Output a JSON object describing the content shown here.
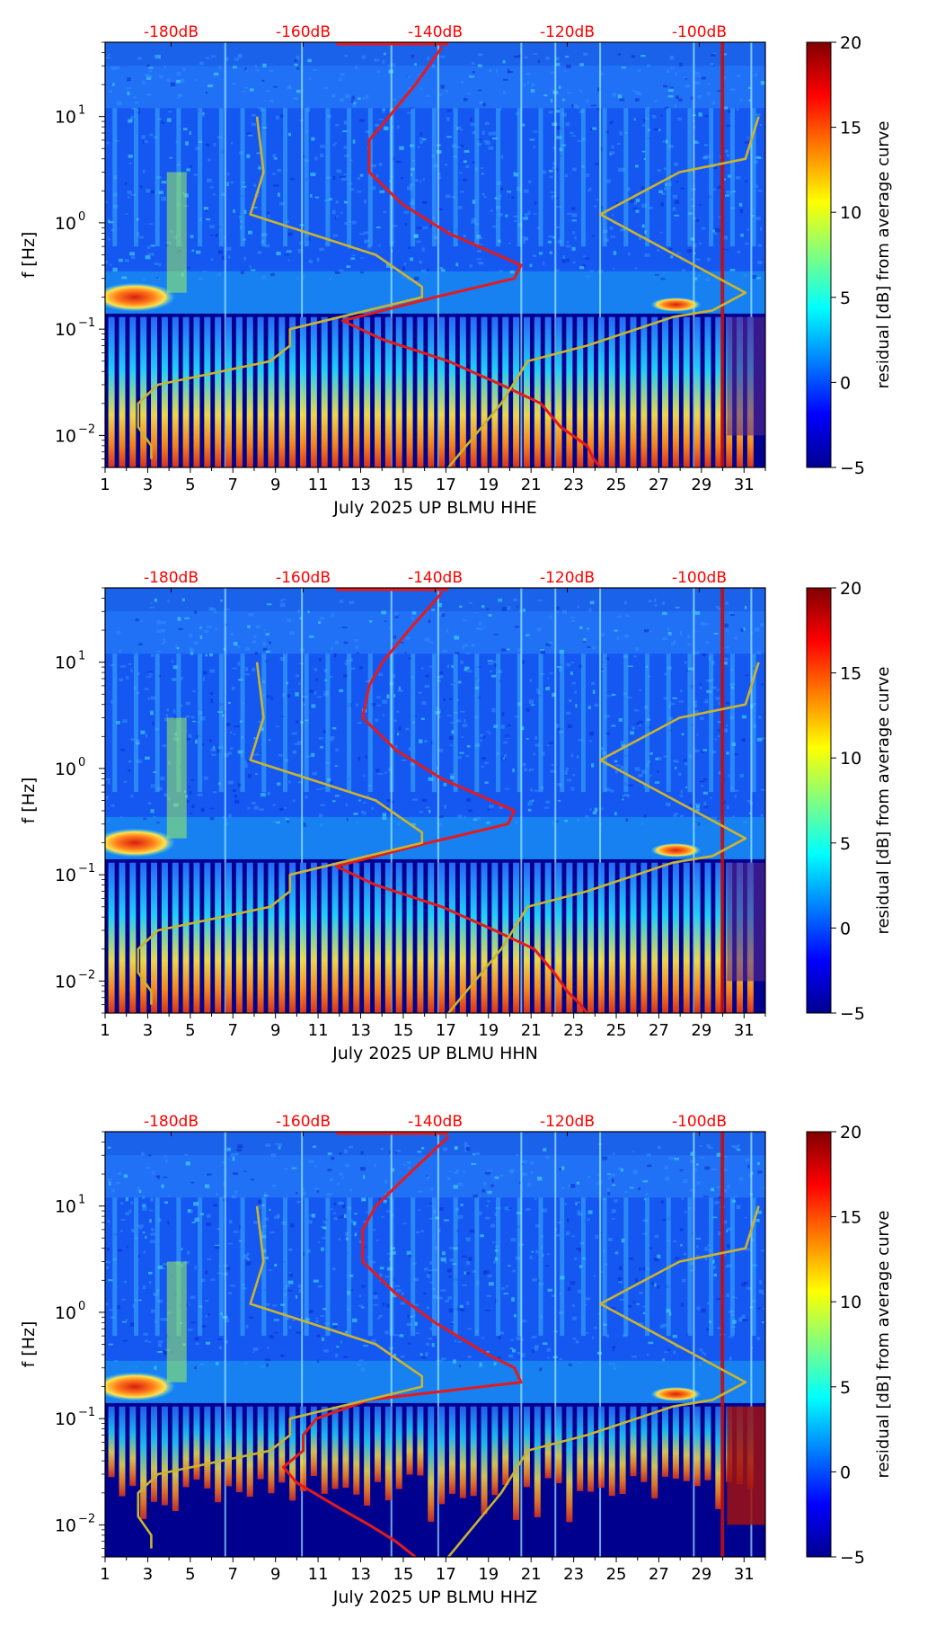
{
  "figure": {
    "colorbar": {
      "label": "residual [dB] from average curve",
      "ticks": [
        20,
        15,
        10,
        5,
        0,
        -5
      ],
      "range": [
        -5,
        20
      ],
      "colors": [
        "#00008f",
        "#0000ff",
        "#0080ff",
        "#00ffff",
        "#80ff80",
        "#ffff00",
        "#ff8000",
        "#ff0000",
        "#800000"
      ]
    },
    "ylabel": "f [Hz]",
    "x_tick_labels": [
      "1",
      "3",
      "5",
      "7",
      "9",
      "11",
      "13",
      "15",
      "17",
      "19",
      "21",
      "23",
      "25",
      "27",
      "29",
      "31"
    ],
    "y_tick_labels": [
      "10",
      "10",
      "10",
      "10"
    ],
    "y_tick_exponents": [
      "1",
      "0",
      "−1",
      "−2"
    ],
    "db_labels": [
      "-180dB",
      "-160dB",
      "-140dB",
      "-120dB",
      "-100dB"
    ],
    "colors": {
      "red_curve": "#e41a1c",
      "olive_curve": "#c8b432",
      "db_label": "#ff0000"
    }
  },
  "chart_data": [
    {
      "type": "heatmap",
      "title": "July 2025 UP BLMU  HHE",
      "xlabel": "July 2025 UP BLMU  HHE",
      "ylabel": "f [Hz]",
      "xlim": [
        1,
        32
      ],
      "ylim": [
        0.005,
        50
      ],
      "y_scale": "log",
      "colorbar_label": "residual [dB] from average curve",
      "colorbar_range": [
        -5,
        20
      ],
      "db_axis_labels": [
        "-180dB",
        "-160dB",
        "-140dB",
        "-120dB",
        "-100dB"
      ],
      "series": [
        {
          "name": "median PSD (red)",
          "unit": "dB",
          "freqs": [
            45,
            20,
            10,
            6,
            3,
            1.5,
            0.8,
            0.4,
            0.3,
            0.2,
            0.12,
            0.08,
            0.05,
            0.03,
            0.02,
            0.012,
            0.008,
            0.006,
            0.005
          ],
          "db": [
            -139,
            -143,
            -147,
            -150,
            -150,
            -145,
            -138,
            -127,
            -128,
            -140,
            -154,
            -148,
            -138,
            -130,
            -124,
            -121,
            -117,
            -116,
            -115
          ]
        },
        {
          "name": "low noise model (olive)",
          "unit": "dB",
          "freqs": [
            10,
            3,
            1.2,
            0.5,
            0.25,
            0.2,
            0.1,
            0.07,
            0.05,
            0.03,
            0.02,
            0.012,
            0.008,
            0.006
          ],
          "db": [
            -167,
            -166,
            -168,
            -149,
            -142,
            -142,
            -162,
            -162,
            -165,
            -182,
            -185,
            -185,
            -183,
            -183
          ]
        },
        {
          "name": "high noise model (olive)",
          "unit": "dB",
          "freqs": [
            10,
            4,
            3,
            1.2,
            0.22,
            0.15,
            0.13,
            0.07,
            0.05,
            0.02,
            0.01,
            0.005
          ],
          "db": [
            -91,
            -93,
            -103,
            -115,
            -93,
            -98,
            -104,
            -117,
            -126,
            -130,
            -134,
            -138
          ]
        }
      ]
    },
    {
      "type": "heatmap",
      "title": "July 2025 UP BLMU  HHN",
      "xlabel": "July 2025 UP BLMU  HHN",
      "ylabel": "f [Hz]",
      "xlim": [
        1,
        32
      ],
      "ylim": [
        0.005,
        50
      ],
      "y_scale": "log",
      "colorbar_label": "residual [dB] from average curve",
      "colorbar_range": [
        -5,
        20
      ],
      "db_axis_labels": [
        "-180dB",
        "-160dB",
        "-140dB",
        "-120dB",
        "-100dB"
      ],
      "series": [
        {
          "name": "median PSD (red)",
          "unit": "dB",
          "freqs": [
            45,
            20,
            10,
            6,
            3,
            1.5,
            0.8,
            0.4,
            0.3,
            0.2,
            0.12,
            0.08,
            0.05,
            0.03,
            0.02,
            0.012,
            0.008,
            0.006,
            0.005
          ],
          "db": [
            -139,
            -144,
            -148,
            -150,
            -151,
            -146,
            -139,
            -128,
            -129,
            -141,
            -155,
            -149,
            -139,
            -131,
            -125,
            -122,
            -120,
            -118,
            -117
          ]
        },
        {
          "name": "low noise model (olive)",
          "unit": "dB",
          "freqs": [
            10,
            3,
            1.2,
            0.5,
            0.25,
            0.2,
            0.1,
            0.07,
            0.05,
            0.03,
            0.02,
            0.012,
            0.008,
            0.006
          ],
          "db": [
            -167,
            -166,
            -168,
            -149,
            -142,
            -142,
            -162,
            -162,
            -165,
            -182,
            -185,
            -185,
            -183,
            -183
          ]
        },
        {
          "name": "high noise model (olive)",
          "unit": "dB",
          "freqs": [
            10,
            4,
            3,
            1.2,
            0.22,
            0.15,
            0.13,
            0.07,
            0.05,
            0.02,
            0.01,
            0.005
          ],
          "db": [
            -91,
            -93,
            -103,
            -115,
            -93,
            -98,
            -104,
            -117,
            -126,
            -130,
            -134,
            -138
          ]
        }
      ]
    },
    {
      "type": "heatmap",
      "title": "July 2025 UP BLMU  HHZ",
      "xlabel": "July 2025 UP BLMU  HHZ",
      "ylabel": "f [Hz]",
      "xlim": [
        1,
        32
      ],
      "ylim": [
        0.005,
        50
      ],
      "y_scale": "log",
      "colorbar_label": "residual [dB] from average curve",
      "colorbar_range": [
        -5,
        20
      ],
      "db_axis_labels": [
        "-180dB",
        "-160dB",
        "-140dB",
        "-120dB",
        "-100dB"
      ],
      "series": [
        {
          "name": "median PSD (red)",
          "unit": "dB",
          "freqs": [
            45,
            20,
            10,
            6,
            3,
            1.5,
            0.8,
            0.4,
            0.3,
            0.22,
            0.15,
            0.1,
            0.07,
            0.05,
            0.035,
            0.025,
            0.015,
            0.01,
            0.007,
            0.005
          ],
          "db": [
            -138,
            -144,
            -149,
            -151,
            -151,
            -146,
            -140,
            -132,
            -128,
            -127,
            -150,
            -158,
            -160,
            -160,
            -163,
            -161,
            -155,
            -150,
            -146,
            -143
          ]
        },
        {
          "name": "low noise model (olive)",
          "unit": "dB",
          "freqs": [
            10,
            3,
            1.2,
            0.5,
            0.25,
            0.2,
            0.1,
            0.07,
            0.05,
            0.03,
            0.02,
            0.012,
            0.008,
            0.006
          ],
          "db": [
            -167,
            -166,
            -168,
            -149,
            -142,
            -142,
            -162,
            -162,
            -165,
            -182,
            -185,
            -185,
            -183,
            -183
          ]
        },
        {
          "name": "high noise model (olive)",
          "unit": "dB",
          "freqs": [
            10,
            4,
            3,
            1.2,
            0.22,
            0.15,
            0.13,
            0.07,
            0.05,
            0.02,
            0.01,
            0.005
          ],
          "db": [
            -91,
            -93,
            -103,
            -115,
            -93,
            -98,
            -104,
            -117,
            -126,
            -130,
            -134,
            -138
          ]
        }
      ]
    }
  ]
}
